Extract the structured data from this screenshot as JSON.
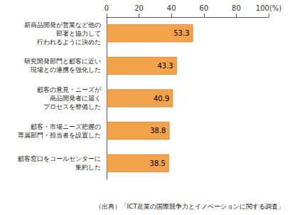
{
  "chart_data": {
    "type": "bar",
    "orientation": "horizontal",
    "categories": [
      "新商品開発が営業など他の\n部署と協力して\n行われるように決めた",
      "研究開発部門と顧客に近い\n現場との連携を強化した",
      "顧客の意見・ニーズが\n商品開発者に届く\nプロセスを整備した",
      "顧客・市場ニーズ把握の\n専属部門・担当者を設置した",
      "顧客窓口をコールセンターに\n集約した"
    ],
    "values": [
      53.3,
      43.3,
      40.9,
      38.8,
      38.5
    ],
    "color": "#f2a24a",
    "xlim": [
      0,
      100
    ],
    "xticks": [
      0,
      20,
      40,
      60,
      80,
      {
        "value": 100,
        "label": "100(%)"
      }
    ],
    "grid": false,
    "data_labels": true,
    "annotations": [
      "（出典）「ICT産業の国際競争力とイノベーションに関する調査」"
    ]
  }
}
